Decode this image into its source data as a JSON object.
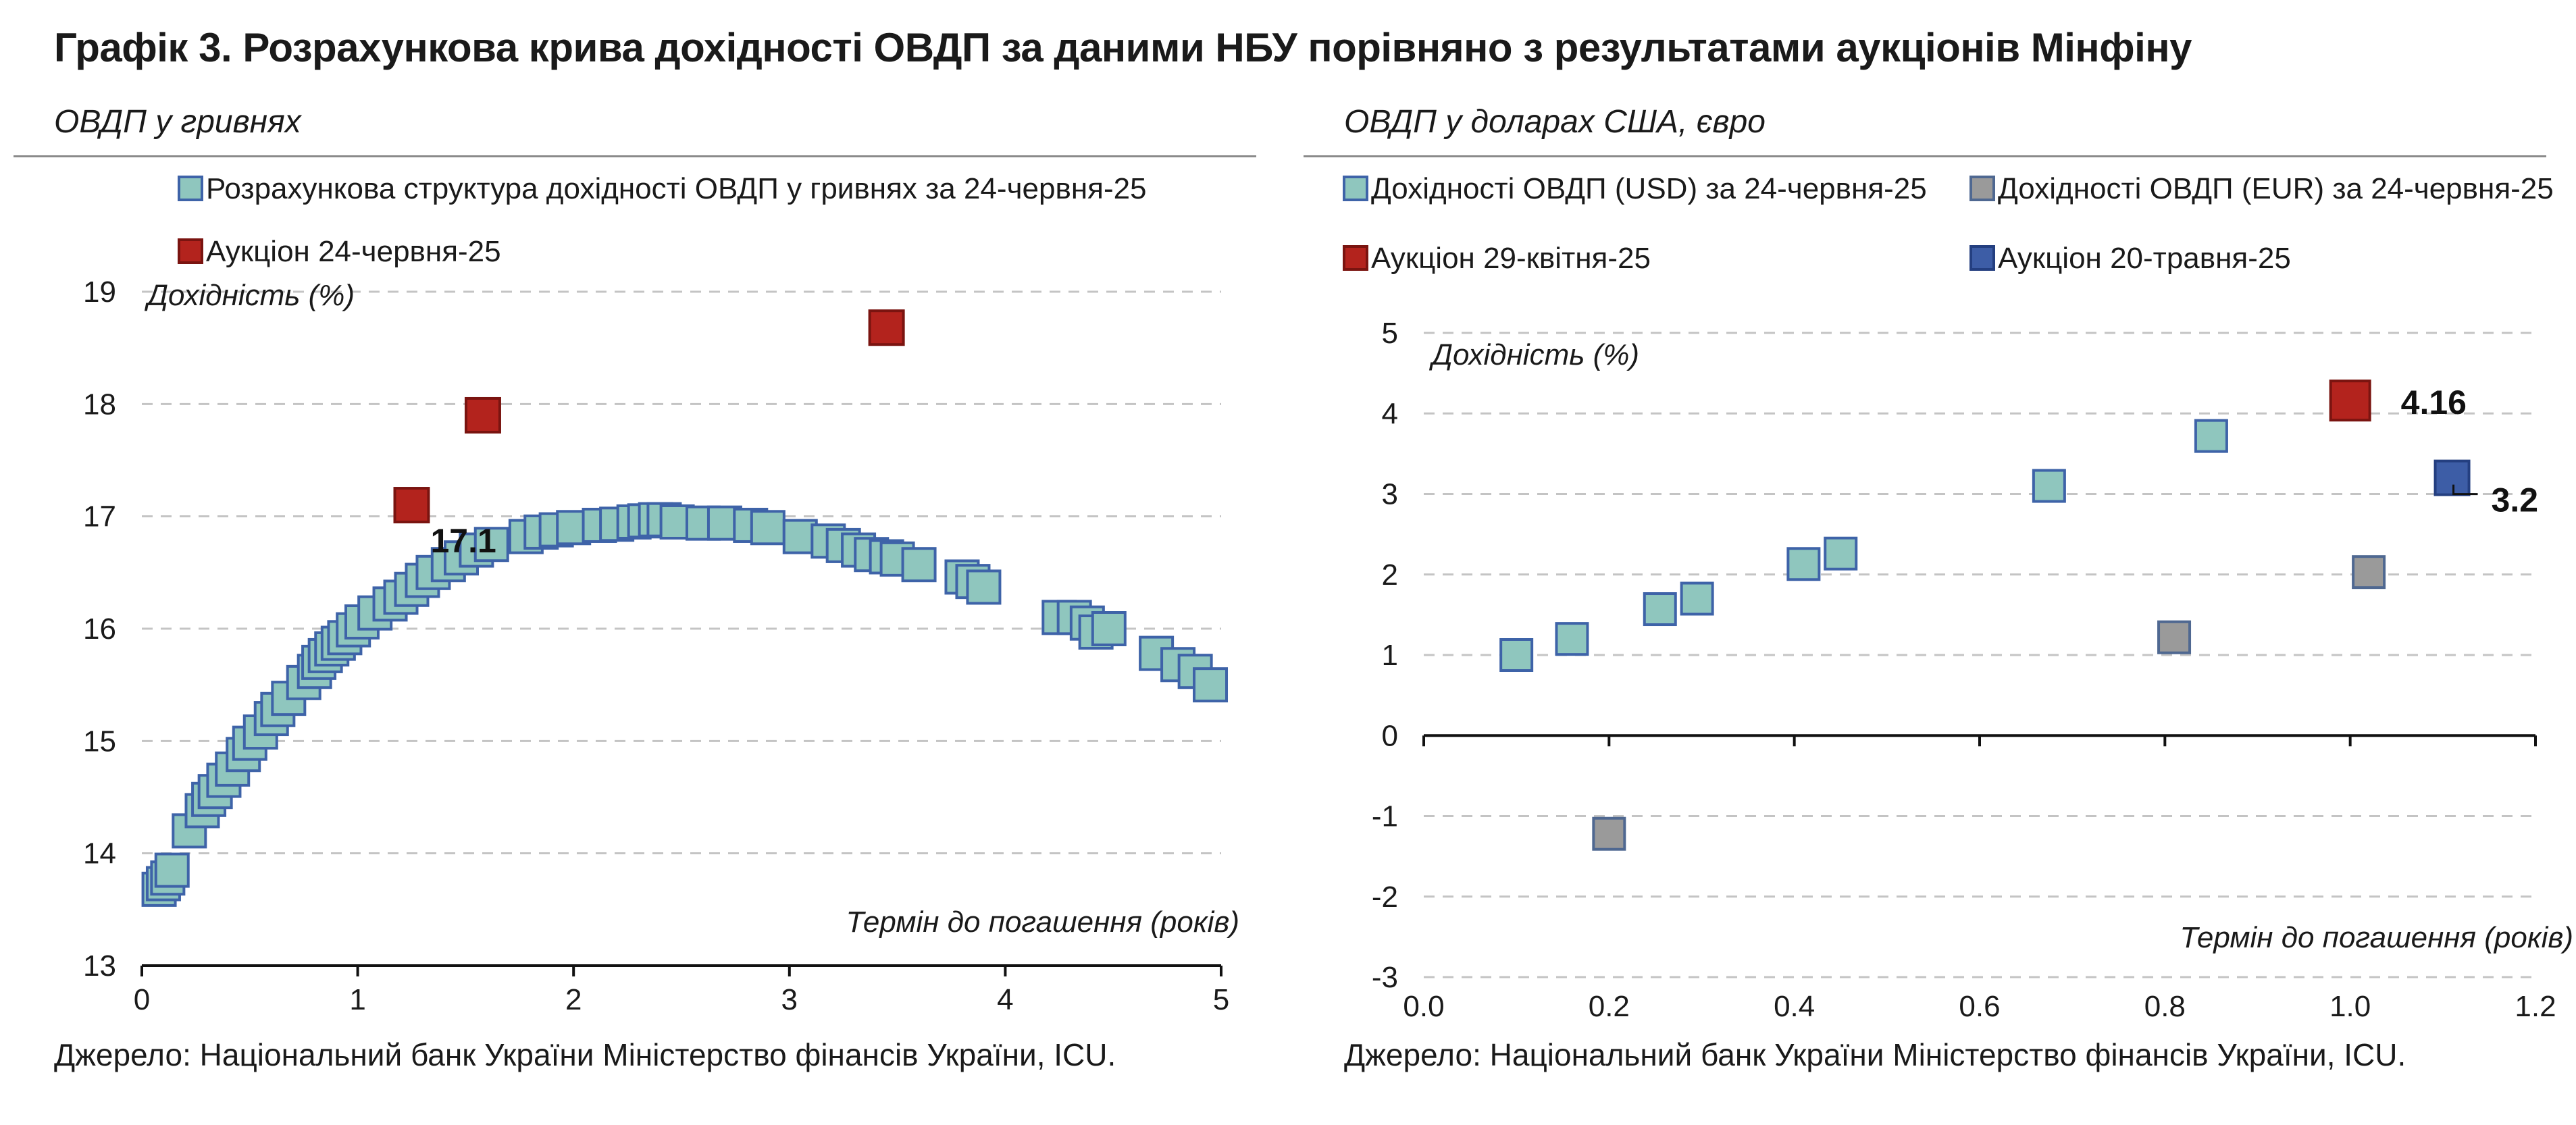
{
  "title": "Графік 3. Розрахункова крива дохідності ОВДП за даними НБУ порівняно з результатами аукціонів Мінфіну",
  "colors": {
    "teal": "#8fc6be",
    "teal_border": "#3e63a8",
    "red": "#b3231d",
    "red_border": "#7a1410",
    "gray": "#9a9a9a",
    "gray_border": "#4f6891",
    "blue": "#3d5da6",
    "blue_border": "#243f80",
    "grid": "#c4c4c4"
  },
  "left_panel": {
    "subtitle": "ОВДП у гривнях",
    "source": "Джерело: Національний банк України Міністерство фінансів України, ICU."
  },
  "right_panel": {
    "subtitle": "ОВДП у доларах США, євро",
    "source": "Джерело: Національний банк України Міністерство фінансів України, ICU."
  },
  "chart_data": [
    {
      "type": "scatter",
      "title": "ОВДП у гривнях",
      "xlabel": "Термін до погашення (років)",
      "ylabel": "Дохідність (%)",
      "xlim": [
        0,
        5
      ],
      "ylim": [
        13,
        19
      ],
      "xticks": [
        "0",
        "1",
        "2",
        "3",
        "4",
        "5"
      ],
      "yticks": [
        "13",
        "14",
        "15",
        "16",
        "17",
        "18",
        "19"
      ],
      "grid": "horizontal-dashed",
      "legend_position": "top-left",
      "series": [
        {
          "name": "Розрахункова структура дохідності ОВДП у гривнях за 24-червня-25",
          "color_key": "teal",
          "points": [
            [
              0.08,
              13.68
            ],
            [
              0.1,
              13.73
            ],
            [
              0.12,
              13.78
            ],
            [
              0.14,
              13.85
            ],
            [
              0.22,
              14.2
            ],
            [
              0.28,
              14.38
            ],
            [
              0.31,
              14.48
            ],
            [
              0.34,
              14.55
            ],
            [
              0.38,
              14.65
            ],
            [
              0.42,
              14.75
            ],
            [
              0.47,
              14.88
            ],
            [
              0.5,
              14.98
            ],
            [
              0.55,
              15.08
            ],
            [
              0.6,
              15.2
            ],
            [
              0.63,
              15.28
            ],
            [
              0.68,
              15.38
            ],
            [
              0.75,
              15.52
            ],
            [
              0.8,
              15.62
            ],
            [
              0.82,
              15.7
            ],
            [
              0.85,
              15.76
            ],
            [
              0.88,
              15.82
            ],
            [
              0.91,
              15.87
            ],
            [
              0.94,
              15.92
            ],
            [
              0.98,
              15.99
            ],
            [
              1.02,
              16.06
            ],
            [
              1.08,
              16.14
            ],
            [
              1.15,
              16.22
            ],
            [
              1.2,
              16.28
            ],
            [
              1.25,
              16.35
            ],
            [
              1.3,
              16.43
            ],
            [
              1.35,
              16.5
            ],
            [
              1.42,
              16.57
            ],
            [
              1.48,
              16.63
            ],
            [
              1.55,
              16.7
            ],
            [
              1.62,
              16.75
            ],
            [
              1.78,
              16.82
            ],
            [
              1.85,
              16.86
            ],
            [
              1.92,
              16.88
            ],
            [
              2.0,
              16.9
            ],
            [
              2.12,
              16.92
            ],
            [
              2.2,
              16.93
            ],
            [
              2.28,
              16.95
            ],
            [
              2.33,
              16.96
            ],
            [
              2.38,
              16.97
            ],
            [
              2.42,
              16.97
            ],
            [
              2.48,
              16.95
            ],
            [
              2.6,
              16.94
            ],
            [
              2.7,
              16.94
            ],
            [
              2.82,
              16.92
            ],
            [
              2.9,
              16.9
            ],
            [
              3.05,
              16.82
            ],
            [
              3.18,
              16.78
            ],
            [
              3.25,
              16.74
            ],
            [
              3.32,
              16.7
            ],
            [
              3.38,
              16.66
            ],
            [
              3.45,
              16.64
            ],
            [
              3.5,
              16.62
            ],
            [
              3.6,
              16.57
            ],
            [
              3.8,
              16.46
            ],
            [
              3.85,
              16.42
            ],
            [
              3.9,
              16.37
            ],
            [
              4.25,
              16.1
            ],
            [
              4.32,
              16.1
            ],
            [
              4.38,
              16.05
            ],
            [
              4.42,
              15.97
            ],
            [
              4.48,
              16.0
            ],
            [
              4.7,
              15.78
            ],
            [
              4.8,
              15.68
            ],
            [
              4.88,
              15.62
            ],
            [
              4.95,
              15.5
            ]
          ]
        },
        {
          "name": "Аукціон 24-червня-25",
          "color_key": "red",
          "points": [
            [
              1.25,
              17.1
            ],
            [
              1.58,
              17.9
            ],
            [
              3.45,
              18.68
            ]
          ]
        }
      ],
      "annotations": [
        {
          "text": "17.1",
          "x": 1.25,
          "y": 17.1
        }
      ]
    },
    {
      "type": "scatter",
      "title": "ОВДП у доларах США, євро",
      "xlabel": "Термін до погашення (років)",
      "ylabel": "Дохідність (%)",
      "xlim": [
        0.0,
        1.2
      ],
      "ylim": [
        -3,
        5
      ],
      "xticks": [
        "0.0",
        "0.2",
        "0.4",
        "0.6",
        "0.8",
        "1.0",
        "1.2"
      ],
      "yticks": [
        "-3",
        "-2",
        "-1",
        "0",
        "1",
        "2",
        "3",
        "4",
        "5"
      ],
      "grid": "horizontal-dashed",
      "legend_position": "top",
      "series": [
        {
          "name": "Дохідності ОВДП (USD) за 24-червня-25",
          "color_key": "teal",
          "points": [
            [
              0.1,
              1.0
            ],
            [
              0.16,
              1.2
            ],
            [
              0.255,
              1.57
            ],
            [
              0.295,
              1.7
            ],
            [
              0.41,
              2.13
            ],
            [
              0.45,
              2.26
            ],
            [
              0.675,
              3.1
            ],
            [
              0.85,
              3.72
            ]
          ]
        },
        {
          "name": "Дохідності ОВДП (EUR) за 24-червня-25",
          "color_key": "gray",
          "points": [
            [
              0.2,
              -1.22
            ],
            [
              0.81,
              1.22
            ],
            [
              1.02,
              2.03
            ]
          ]
        },
        {
          "name": "Аукціон 29-квітня-25",
          "color_key": "red",
          "points": [
            [
              1.0,
              4.16
            ]
          ]
        },
        {
          "name": "Аукціон 20-травня-25",
          "color_key": "blue",
          "points": [
            [
              1.11,
              3.2
            ]
          ]
        }
      ],
      "annotations": [
        {
          "text": "4.16",
          "x": 1.0,
          "y": 4.16
        },
        {
          "text": "3.2",
          "x": 1.11,
          "y": 3.2
        }
      ]
    }
  ]
}
